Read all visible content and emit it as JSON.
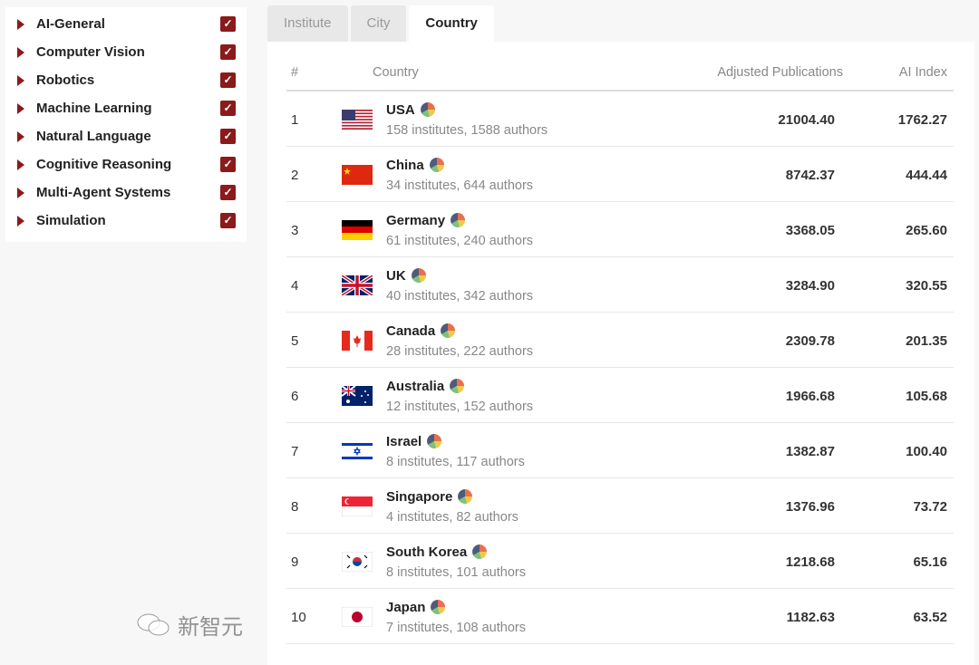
{
  "sidebar": {
    "items": [
      {
        "label": "AI-General",
        "checked": true
      },
      {
        "label": "Computer Vision",
        "checked": true
      },
      {
        "label": "Robotics",
        "checked": true
      },
      {
        "label": "Machine Learning",
        "checked": true
      },
      {
        "label": "Natural Language",
        "checked": true
      },
      {
        "label": "Cognitive Reasoning",
        "checked": true
      },
      {
        "label": "Multi-Agent Systems",
        "checked": true
      },
      {
        "label": "Simulation",
        "checked": true
      }
    ]
  },
  "tabs": [
    {
      "label": "Institute",
      "active": false
    },
    {
      "label": "City",
      "active": false
    },
    {
      "label": "Country",
      "active": true
    }
  ],
  "table": {
    "headers": [
      "#",
      "Country",
      "Adjusted Publications",
      "AI Index"
    ],
    "rows": [
      {
        "rank": "1",
        "country": "USA",
        "flag": "us",
        "sub": "158 institutes, 1588 authors",
        "pubs": "21004.40",
        "index": "1762.27"
      },
      {
        "rank": "2",
        "country": "China",
        "flag": "cn",
        "sub": "34 institutes, 644 authors",
        "pubs": "8742.37",
        "index": "444.44"
      },
      {
        "rank": "3",
        "country": "Germany",
        "flag": "de",
        "sub": "61 institutes, 240 authors",
        "pubs": "3368.05",
        "index": "265.60"
      },
      {
        "rank": "4",
        "country": "UK",
        "flag": "uk",
        "sub": "40 institutes, 342 authors",
        "pubs": "3284.90",
        "index": "320.55"
      },
      {
        "rank": "5",
        "country": "Canada",
        "flag": "ca",
        "sub": "28 institutes, 222 authors",
        "pubs": "2309.78",
        "index": "201.35"
      },
      {
        "rank": "6",
        "country": "Australia",
        "flag": "au",
        "sub": "12 institutes, 152 authors",
        "pubs": "1966.68",
        "index": "105.68"
      },
      {
        "rank": "7",
        "country": "Israel",
        "flag": "il",
        "sub": "8 institutes, 117 authors",
        "pubs": "1382.87",
        "index": "100.40"
      },
      {
        "rank": "8",
        "country": "Singapore",
        "flag": "sg",
        "sub": "4 institutes, 82 authors",
        "pubs": "1376.96",
        "index": "73.72"
      },
      {
        "rank": "9",
        "country": "South Korea",
        "flag": "kr",
        "sub": "8 institutes, 101 authors",
        "pubs": "1218.68",
        "index": "65.16"
      },
      {
        "rank": "10",
        "country": "Japan",
        "flag": "jp",
        "sub": "7 institutes, 108 authors",
        "pubs": "1182.63",
        "index": "63.52"
      }
    ]
  },
  "icons": {
    "row_icon": "pie-chart-icon",
    "expand": "caret-right-icon",
    "check": "checkbox-checked-icon"
  },
  "colors": {
    "accent": "#8b1a1a",
    "pie": [
      "#4f5b7a",
      "#e8704f",
      "#f2c94c",
      "#7cc27a"
    ]
  },
  "watermark": "新智元"
}
